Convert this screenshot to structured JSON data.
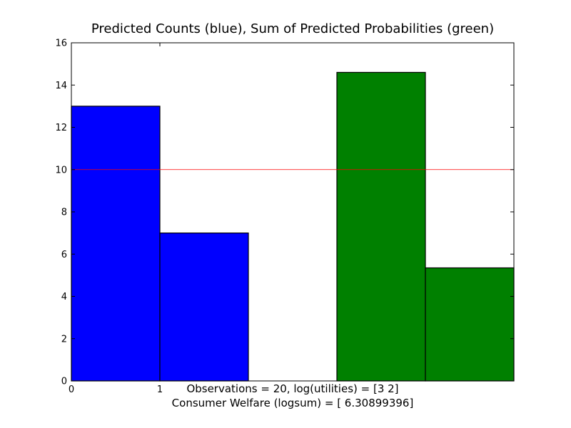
{
  "chart_data": {
    "type": "bar",
    "title": "Predicted Counts (blue), Sum of Predicted Probabilities (green)",
    "xlim": [
      0,
      5
    ],
    "ylim": [
      0,
      16
    ],
    "x_ticks": [
      0,
      1
    ],
    "y_ticks": [
      0,
      2,
      4,
      6,
      8,
      10,
      12,
      14,
      16
    ],
    "grid": false,
    "series": [
      {
        "color": "#0000ff",
        "bars": [
          {
            "x_start": 0,
            "x_end": 1,
            "value": 13
          },
          {
            "x_start": 1,
            "x_end": 2,
            "value": 7
          }
        ]
      },
      {
        "color": "#008000",
        "bars": [
          {
            "x_start": 3,
            "x_end": 4,
            "value": 14.6
          },
          {
            "x_start": 4,
            "x_end": 5,
            "value": 5.35
          }
        ]
      }
    ],
    "reference_line": {
      "y": 10,
      "color": "#ff0000"
    },
    "annotations": [
      "Observations = 20, log(utilities) = [3 2]",
      "Consumer Welfare (logsum) = [ 6.30899396]"
    ]
  }
}
